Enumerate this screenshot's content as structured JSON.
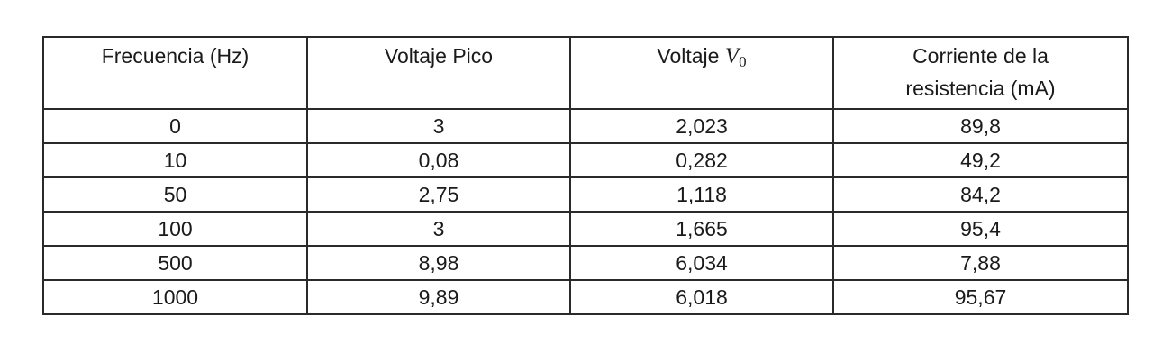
{
  "table": {
    "headers": {
      "col1": "Frecuencia (Hz)",
      "col2": "Voltaje Pico",
      "col3_prefix": "Voltaje ",
      "col3_symbol": "V",
      "col3_subscript": "0",
      "col4_line1": "Corriente de la",
      "col4_line2": "resistencia (mA)"
    },
    "rows": [
      {
        "frecuencia": "0",
        "voltaje_pico": "3",
        "voltaje_v0": "2,023",
        "corriente": "89,8"
      },
      {
        "frecuencia": "10",
        "voltaje_pico": "0,08",
        "voltaje_v0": "0,282",
        "corriente": "49,2"
      },
      {
        "frecuencia": "50",
        "voltaje_pico": "2,75",
        "voltaje_v0": "1,118",
        "corriente": "84,2"
      },
      {
        "frecuencia": "100",
        "voltaje_pico": "3",
        "voltaje_v0": "1,665",
        "corriente": "95,4"
      },
      {
        "frecuencia": "500",
        "voltaje_pico": "8,98",
        "voltaje_v0": "6,034",
        "corriente": "7,88"
      },
      {
        "frecuencia": "1000",
        "voltaje_pico": "9,89",
        "voltaje_v0": "6,018",
        "corriente": "95,67"
      }
    ]
  }
}
